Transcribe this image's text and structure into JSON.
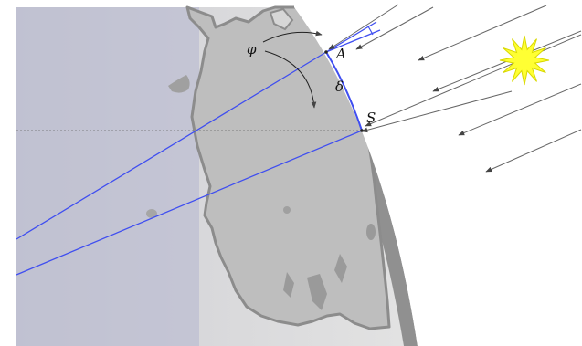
{
  "labels": {
    "point_a": "A",
    "point_s": "S",
    "phi": "φ",
    "delta": "δ"
  },
  "colors": {
    "construction_line": "#3f4ef0",
    "sun": "#ffff33",
    "sun_outline": "#d8d800",
    "earth_light": "#dcdcdc",
    "earth_rim": "#8f8f8f",
    "land": "#c0c0c0",
    "land_outline": "#8c8c8c",
    "sun_ray": "#555555",
    "equator": "#666666"
  },
  "icons": {
    "sun": "sun-icon"
  },
  "sun_rays_count": 8
}
